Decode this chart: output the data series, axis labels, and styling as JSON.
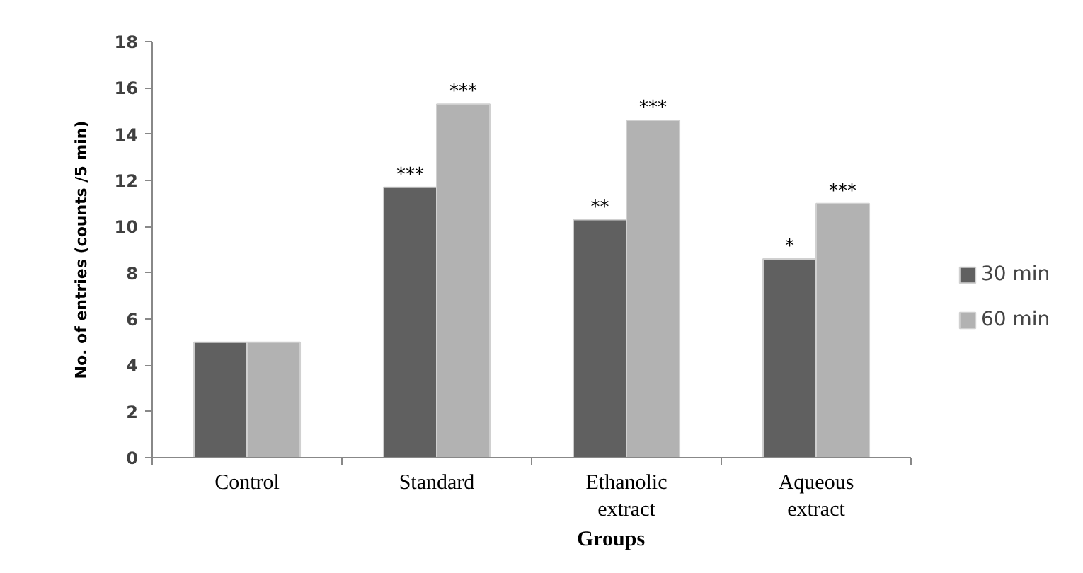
{
  "chart_data": {
    "type": "bar",
    "categories": [
      "Control",
      "Standard",
      "Ethanolic extract",
      "Aqueous extract"
    ],
    "series": [
      {
        "name": "30 min",
        "color": "#606060",
        "values": [
          5.0,
          11.7,
          10.3,
          8.6
        ],
        "value_labels": [
          null,
          "***",
          "**",
          "*"
        ]
      },
      {
        "name": "60 min",
        "color": "#b2b2b2",
        "values": [
          5.0,
          15.3,
          14.6,
          11.0
        ],
        "value_labels": [
          null,
          "***",
          "***",
          "***"
        ]
      }
    ],
    "xlabel": "Groups",
    "ylabel": "No. of entries (counts /5 min)",
    "ylim": [
      0,
      18
    ],
    "yticks": [
      0,
      2,
      4,
      6,
      8,
      10,
      12,
      14,
      16,
      18
    ],
    "legend": "right",
    "grid": false
  }
}
